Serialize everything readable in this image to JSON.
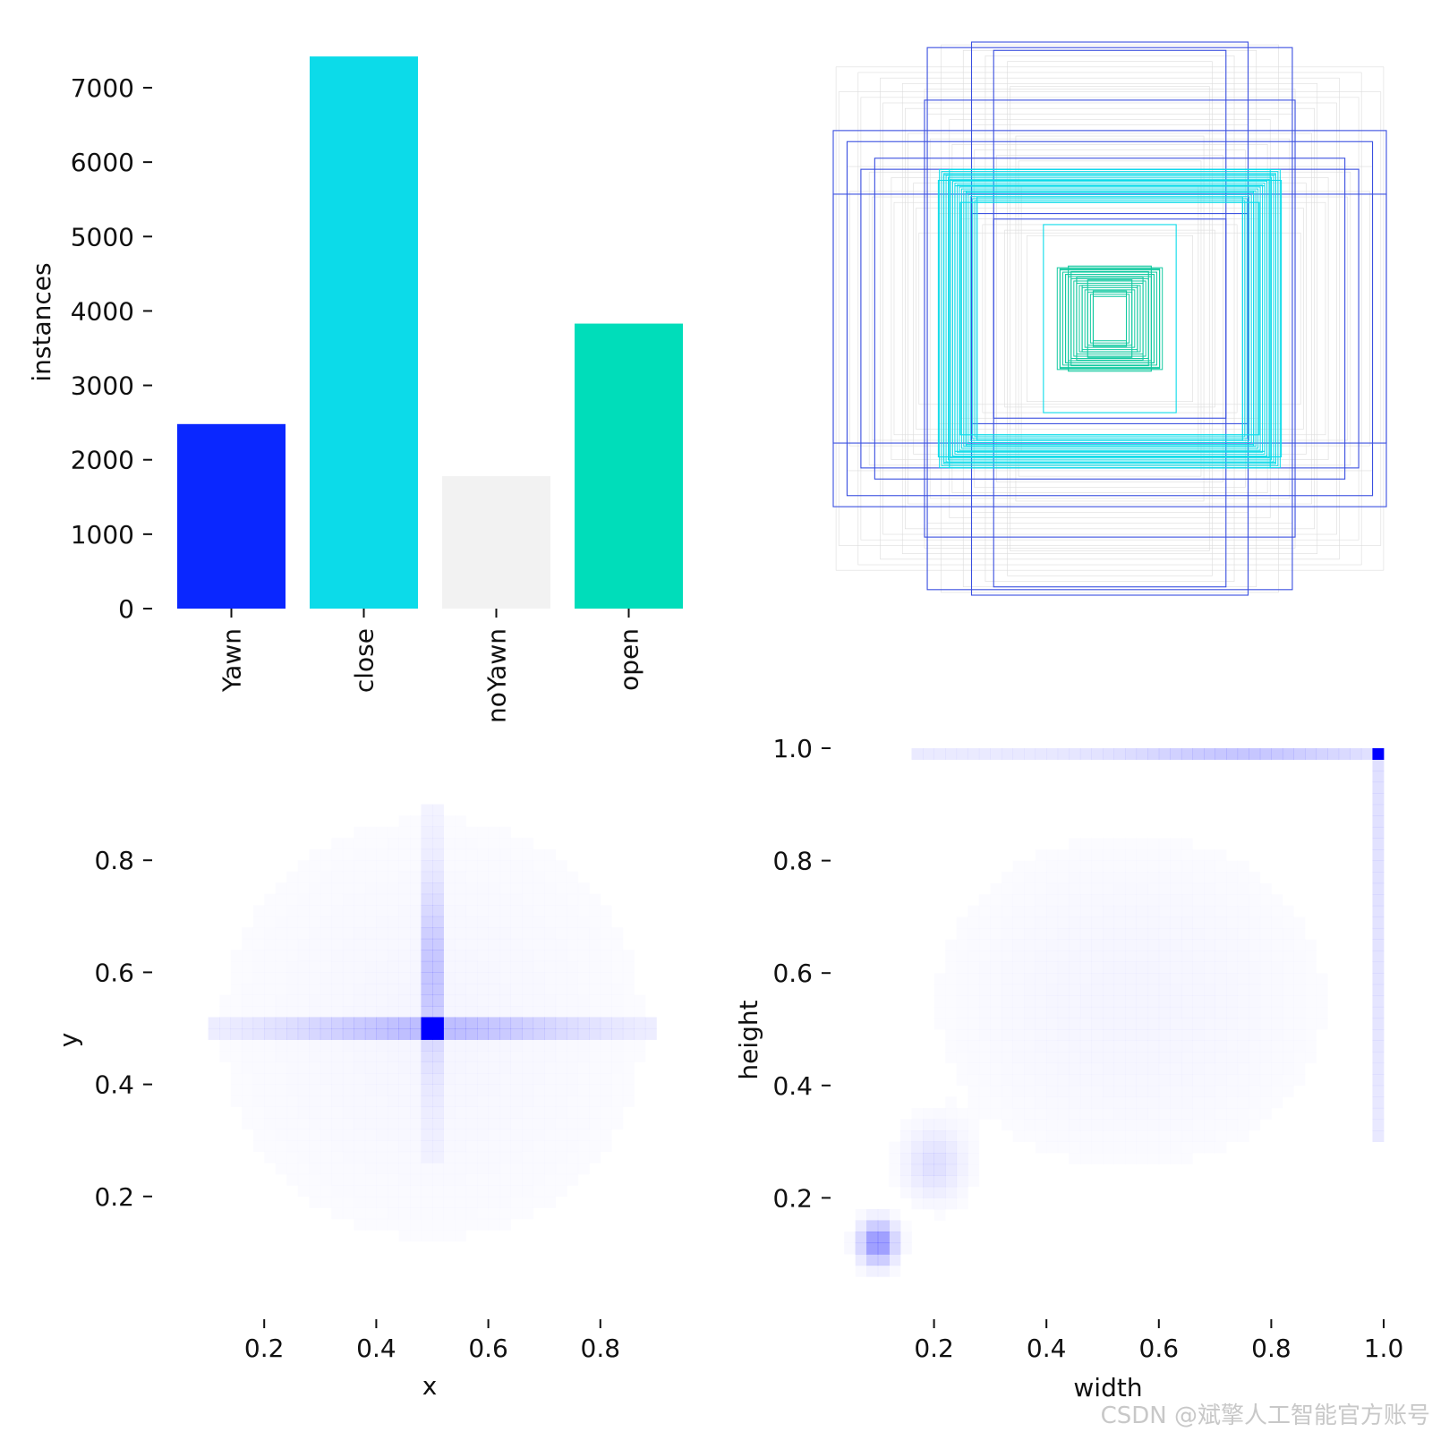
{
  "colors": {
    "Yawn": "#0a27ff",
    "close": "#0cdbe9",
    "noYawn": "#f2f2f2",
    "open": "#00ddba",
    "heat": "#0000ff",
    "box_blue": "#3a4fe0",
    "box_cyan": "#0cdbe9",
    "box_teal": "#12c9a0",
    "box_gray": "#dcdcdc"
  },
  "watermark": "CSDN @斌擎人工智能官方账号",
  "chart_data": [
    {
      "type": "bar",
      "categories": [
        "Yawn",
        "close",
        "noYawn",
        "open"
      ],
      "values": [
        2480,
        7420,
        1780,
        3830
      ],
      "xlabel": "",
      "ylabel": "instances",
      "ylim": [
        0,
        7500
      ],
      "yticks": [
        "0",
        "1000",
        "2000",
        "3000",
        "4000",
        "5000",
        "6000",
        "7000"
      ],
      "grid": false
    },
    {
      "type": "scatter",
      "description": "label boxes drawn centered",
      "title": "",
      "boxes": [
        {
          "w": 0.5,
          "h": 1.0,
          "cls": "blue"
        },
        {
          "w": 0.42,
          "h": 0.97,
          "cls": "blue"
        },
        {
          "w": 0.66,
          "h": 0.98,
          "cls": "blue"
        },
        {
          "w": 0.67,
          "h": 0.79,
          "cls": "blue"
        },
        {
          "w": 1.0,
          "h": 0.68,
          "cls": "blue"
        },
        {
          "w": 1.0,
          "h": 0.45,
          "cls": "blue"
        },
        {
          "w": 0.95,
          "h": 0.64,
          "cls": "blue"
        },
        {
          "w": 0.9,
          "h": 0.54,
          "cls": "blue"
        },
        {
          "w": 0.85,
          "h": 0.58,
          "cls": "blue"
        },
        {
          "w": 0.42,
          "h": 0.36,
          "cls": "blue"
        },
        {
          "w": 0.5,
          "h": 0.38,
          "cls": "blue"
        },
        {
          "w": 0.6,
          "h": 0.52,
          "cls": "cyan"
        },
        {
          "w": 0.56,
          "h": 0.48,
          "cls": "cyan"
        },
        {
          "w": 0.52,
          "h": 0.46,
          "cls": "cyan"
        },
        {
          "w": 0.54,
          "h": 0.42,
          "cls": "cyan"
        },
        {
          "w": 0.62,
          "h": 0.5,
          "cls": "cyan"
        },
        {
          "w": 0.58,
          "h": 0.54,
          "cls": "cyan"
        },
        {
          "w": 0.48,
          "h": 0.44,
          "cls": "cyan"
        },
        {
          "w": 0.24,
          "h": 0.34,
          "cls": "cyan"
        },
        {
          "w": 0.18,
          "h": 0.18,
          "cls": "teal"
        },
        {
          "w": 0.16,
          "h": 0.16,
          "cls": "teal"
        },
        {
          "w": 0.14,
          "h": 0.17,
          "cls": "teal"
        },
        {
          "w": 0.12,
          "h": 0.15,
          "cls": "teal"
        },
        {
          "w": 0.1,
          "h": 0.12,
          "cls": "teal"
        },
        {
          "w": 0.08,
          "h": 0.14,
          "cls": "teal"
        },
        {
          "w": 0.06,
          "h": 0.1,
          "cls": "teal"
        },
        {
          "w": 0.15,
          "h": 0.19,
          "cls": "teal"
        }
      ]
    },
    {
      "type": "heatmap",
      "xlabel": "x",
      "ylabel": "y",
      "xticks": [
        "0.2",
        "0.4",
        "0.6",
        "0.8"
      ],
      "yticks": [
        "0.2",
        "0.4",
        "0.6",
        "0.8"
      ],
      "xlim": [
        0.0,
        1.0
      ],
      "ylim": [
        0.0,
        1.0
      ],
      "hotspot": {
        "x": 0.5,
        "y": 0.5
      }
    },
    {
      "type": "heatmap",
      "xlabel": "width",
      "ylabel": "height",
      "xticks": [
        "0.2",
        "0.4",
        "0.6",
        "0.8",
        "1.0"
      ],
      "yticks": [
        "0.2",
        "0.4",
        "0.6",
        "0.8",
        "1.0"
      ],
      "xlim": [
        0.0,
        1.0
      ],
      "ylim": [
        0.0,
        1.0
      ],
      "hotspots": [
        {
          "x": 1.0,
          "y": 1.0
        },
        {
          "x": 0.1,
          "y": 0.12
        }
      ]
    }
  ]
}
